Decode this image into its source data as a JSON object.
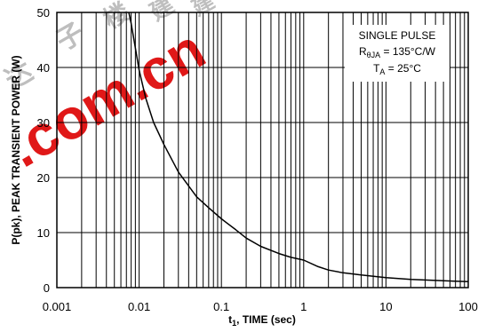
{
  "chart_data": {
    "type": "line",
    "title": "",
    "xlabel": "t",
    "xlabel_sub": "1",
    "xlabel_rest": ", TIME (sec)",
    "ylabel": "P(pk), PEAK TRANSIENT POWER (W)",
    "xscale": "log",
    "xlim": [
      0.001,
      100
    ],
    "ylim": [
      0,
      50
    ],
    "grid": true,
    "x_ticks": [
      0.001,
      0.01,
      0.1,
      1,
      10,
      100
    ],
    "x_tick_labels": [
      "0.001",
      "0.01",
      "0.1",
      "1",
      "10",
      "100"
    ],
    "y_ticks": [
      0,
      10,
      20,
      30,
      40,
      50
    ],
    "y_tick_labels": [
      "0",
      "10",
      "20",
      "30",
      "40",
      "50"
    ],
    "legend": {
      "placement": "top-right",
      "line1": "SINGLE PULSE",
      "line2_main": "R",
      "line2_sub": "θJA",
      "line2_rest": " = 135°C/W",
      "line3_main": "T",
      "line3_sub": "A",
      "line3_rest": " = 25°C"
    },
    "series": [
      {
        "x": [
          0.0075,
          0.008,
          0.009,
          0.01,
          0.012,
          0.015,
          0.02,
          0.03,
          0.05,
          0.07,
          0.1,
          0.15,
          0.2,
          0.3,
          0.5,
          0.7,
          1,
          1.5,
          2,
          3,
          5,
          10,
          20,
          50,
          100
        ],
        "y": [
          50,
          48,
          43.5,
          39.5,
          34.5,
          30,
          26,
          21,
          16.5,
          14.5,
          12.5,
          10.5,
          9,
          7.5,
          6.2,
          5.5,
          5,
          3.8,
          3.2,
          2.7,
          2.3,
          1.8,
          1.5,
          1.25,
          1.1
        ]
      }
    ]
  },
  "watermark": {
    "main": ".com.cn",
    "faint_chars": [
      "达",
      "子",
      "楼",
      "建",
      "建"
    ],
    "color": "#e01818"
  }
}
